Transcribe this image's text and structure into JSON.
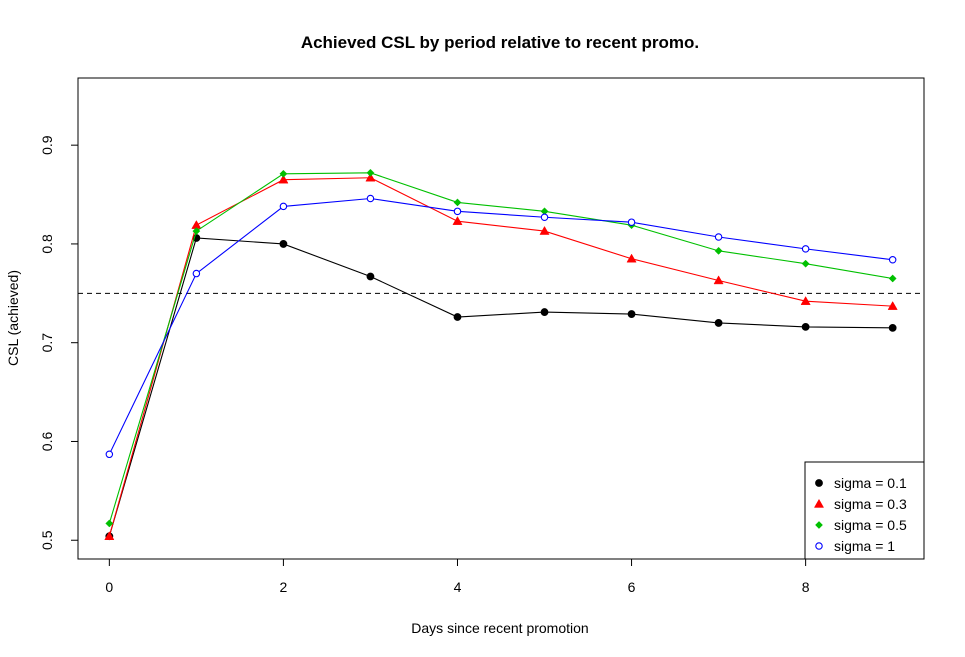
{
  "chart_data": {
    "type": "line",
    "title": "Achieved CSL by period relative to recent promo.",
    "xlabel": "Days since recent promotion",
    "ylabel": "CSL (achieved)",
    "xlim": [
      -0.36,
      9.36
    ],
    "ylim": [
      0.481,
      0.968
    ],
    "x_ticks": [
      0,
      2,
      4,
      6,
      8
    ],
    "y_ticks": [
      0.5,
      0.6,
      0.7,
      0.8,
      0.9
    ],
    "x_tick_labels": [
      "0",
      "2",
      "4",
      "6",
      "8"
    ],
    "y_tick_labels": [
      "0.5",
      "0.6",
      "0.7",
      "0.8",
      "0.9"
    ],
    "reference_line": {
      "y": 0.75,
      "style": "dashed",
      "color": "#000000"
    },
    "grid": false,
    "legend_position": "bottom-right",
    "x": [
      0,
      1,
      2,
      3,
      4,
      5,
      6,
      7,
      8,
      9
    ],
    "series": [
      {
        "name": "sigma = 0.1",
        "color": "#000000",
        "marker": "filled-circle",
        "values": [
          0.504,
          0.806,
          0.8,
          0.767,
          0.726,
          0.731,
          0.729,
          0.72,
          0.716,
          0.715
        ]
      },
      {
        "name": "sigma = 0.3",
        "color": "#ff0000",
        "marker": "filled-triangle",
        "values": [
          0.504,
          0.819,
          0.865,
          0.867,
          0.823,
          0.813,
          0.785,
          0.763,
          0.742,
          0.737
        ]
      },
      {
        "name": "sigma = 0.5",
        "color": "#00c000",
        "marker": "filled-diamond",
        "values": [
          0.517,
          0.813,
          0.871,
          0.872,
          0.842,
          0.833,
          0.819,
          0.793,
          0.78,
          0.765
        ]
      },
      {
        "name": "sigma = 1",
        "color": "#0000ff",
        "marker": "open-circle",
        "values": [
          0.587,
          0.77,
          0.838,
          0.846,
          0.833,
          0.827,
          0.822,
          0.807,
          0.795,
          0.784
        ]
      }
    ]
  }
}
